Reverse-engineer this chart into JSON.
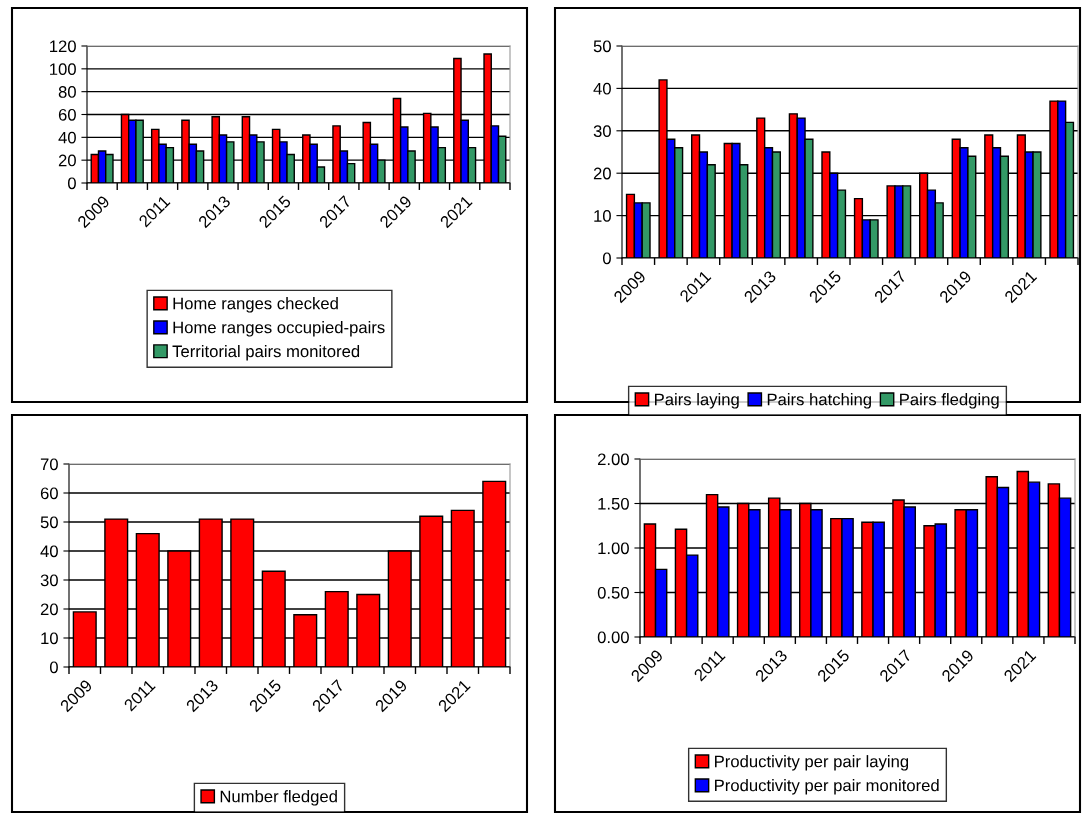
{
  "chart_data": [
    {
      "type": "bar",
      "categories": [
        "2009",
        null,
        "2011",
        null,
        "2013",
        null,
        "2015",
        null,
        "2017",
        null,
        "2019",
        null,
        "2021",
        null
      ],
      "ylim": [
        0,
        120
      ],
      "yticks": [
        0,
        20,
        40,
        60,
        80,
        100,
        120
      ],
      "grid": "y",
      "legend": "bottom",
      "series": [
        {
          "name": "Home ranges checked",
          "color": "#ff0000",
          "values": [
            25,
            60,
            47,
            55,
            58,
            58,
            47,
            42,
            50,
            53,
            74,
            61,
            109,
            113
          ]
        },
        {
          "name": "Home ranges occupied-pairs",
          "color": "#0000ff",
          "values": [
            28,
            55,
            34,
            34,
            42,
            42,
            36,
            34,
            28,
            34,
            49,
            49,
            55,
            50
          ]
        },
        {
          "name": "Territorial pairs monitored",
          "color": "#339966",
          "values": [
            25,
            55,
            31,
            28,
            36,
            36,
            25,
            14,
            17,
            20,
            28,
            31,
            31,
            41
          ]
        }
      ]
    },
    {
      "type": "bar",
      "categories": [
        "2009",
        null,
        "2011",
        null,
        "2013",
        null,
        "2015",
        null,
        "2017",
        null,
        "2019",
        null,
        "2021",
        null
      ],
      "ylim": [
        0,
        50
      ],
      "yticks": [
        0,
        10,
        20,
        30,
        40,
        50
      ],
      "grid": "y",
      "legend": "bottom",
      "series": [
        {
          "name": "Pairs laying",
          "color": "#ff0000",
          "values": [
            15,
            42,
            29,
            27,
            33,
            34,
            25,
            14,
            17,
            20,
            28,
            29,
            29,
            37
          ]
        },
        {
          "name": "Pairs hatching",
          "color": "#0000ff",
          "values": [
            13,
            28,
            25,
            27,
            26,
            33,
            20,
            9,
            17,
            16,
            26,
            26,
            25,
            37
          ]
        },
        {
          "name": "Pairs fledging",
          "color": "#339966",
          "values": [
            13,
            26,
            22,
            22,
            25,
            28,
            16,
            9,
            17,
            13,
            24,
            24,
            25,
            32
          ]
        }
      ]
    },
    {
      "type": "bar",
      "categories": [
        "2009",
        null,
        "2011",
        null,
        "2013",
        null,
        "2015",
        null,
        "2017",
        null,
        "2019",
        null,
        "2021",
        null
      ],
      "ylim": [
        0,
        70
      ],
      "yticks": [
        0,
        10,
        20,
        30,
        40,
        50,
        60,
        70
      ],
      "grid": "y",
      "legend": "bottom",
      "series": [
        {
          "name": "Number fledged",
          "color": "#ff0000",
          "values": [
            19,
            51,
            46,
            40,
            51,
            51,
            33,
            18,
            26,
            25,
            40,
            52,
            54,
            64
          ]
        }
      ]
    },
    {
      "type": "bar",
      "categories": [
        "2009",
        null,
        "2011",
        null,
        "2013",
        null,
        "2015",
        null,
        "2017",
        null,
        "2019",
        null,
        "2021",
        null
      ],
      "ylim": [
        0,
        2
      ],
      "yticks": [
        {
          "value": 0,
          "label": "0.00"
        },
        {
          "value": 0.5,
          "label": "0.50"
        },
        {
          "value": 1,
          "label": "1.00"
        },
        {
          "value": 1.5,
          "label": "1.50"
        },
        {
          "value": 2,
          "label": "2.00"
        }
      ],
      "grid": "y",
      "legend": "bottom",
      "series": [
        {
          "name": "Productivity per pair laying",
          "color": "#ff0000",
          "values": [
            1.27,
            1.21,
            1.6,
            1.5,
            1.56,
            1.5,
            1.33,
            1.29,
            1.54,
            1.25,
            1.43,
            1.8,
            1.86,
            1.72
          ]
        },
        {
          "name": "Productivity per pair monitored",
          "color": "#0000ff",
          "values": [
            0.76,
            0.92,
            1.46,
            1.43,
            1.43,
            1.43,
            1.33,
            1.29,
            1.46,
            1.27,
            1.43,
            1.68,
            1.74,
            1.56
          ]
        }
      ]
    }
  ]
}
